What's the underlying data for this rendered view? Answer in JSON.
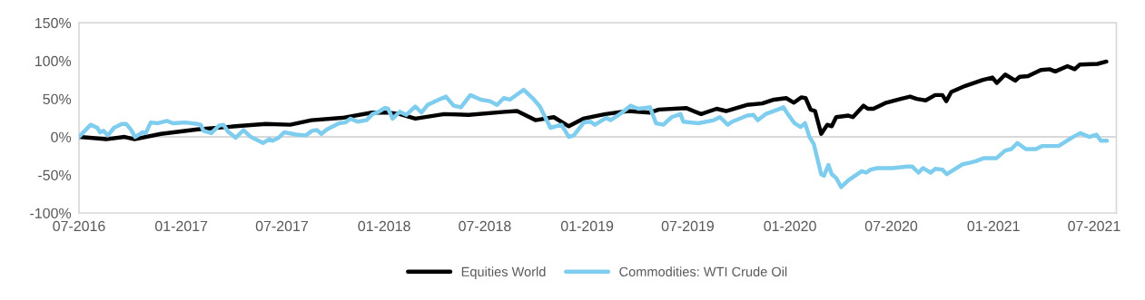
{
  "chart_data": {
    "type": "line",
    "xlim": [
      "2016-07-01",
      "2021-08-10"
    ],
    "xticks": [
      {
        "value": "2016-07-01",
        "label": "07-2016"
      },
      {
        "value": "2017-01-01",
        "label": "01-2017"
      },
      {
        "value": "2017-07-01",
        "label": "07-2017"
      },
      {
        "value": "2018-01-01",
        "label": "01-2018"
      },
      {
        "value": "2018-07-01",
        "label": "07-2018"
      },
      {
        "value": "2019-01-01",
        "label": "01-2019"
      },
      {
        "value": "2019-07-01",
        "label": "07-2019"
      },
      {
        "value": "2020-01-01",
        "label": "01-2020"
      },
      {
        "value": "2020-07-01",
        "label": "07-2020"
      },
      {
        "value": "2021-01-01",
        "label": "01-2021"
      },
      {
        "value": "2021-07-01",
        "label": "07-2021"
      }
    ],
    "ylim": [
      -100,
      150
    ],
    "yticks": [
      {
        "value": -100,
        "label": "-100%"
      },
      {
        "value": -50,
        "label": "-50%"
      },
      {
        "value": 0,
        "label": "0%"
      },
      {
        "value": 50,
        "label": "50%"
      },
      {
        "value": 100,
        "label": "100%"
      },
      {
        "value": 150,
        "label": "150%"
      }
    ],
    "grid": false,
    "legend": "bottom",
    "line_style": "solid",
    "marker": "none",
    "ref_lines": [
      {
        "axis": "y",
        "value": 0,
        "color": "#d9d9d9"
      }
    ],
    "series": [
      {
        "name": "Equities World",
        "color": "#000000",
        "x": [
          "2016-07-01",
          "2016-08-19",
          "2016-09-21",
          "2016-10-09",
          "2016-11-25",
          "2017-01-30",
          "2017-04-09",
          "2017-06-02",
          "2017-07-16",
          "2017-08-23",
          "2017-10-17",
          "2017-12-10",
          "2018-01-08",
          "2018-01-29",
          "2018-02-26",
          "2018-04-19",
          "2018-06-02",
          "2018-08-06",
          "2018-08-28",
          "2018-09-30",
          "2018-11-02",
          "2018-11-29",
          "2018-12-25",
          "2019-02-03",
          "2019-03-16",
          "2019-04-24",
          "2019-05-10",
          "2019-06-28",
          "2019-07-25",
          "2019-08-22",
          "2019-09-08",
          "2019-10-15",
          "2019-11-12",
          "2019-12-03",
          "2019-12-25",
          "2020-01-08",
          "2020-01-21",
          "2020-01-29",
          "2020-02-07",
          "2020-02-15",
          "2020-02-26",
          "2020-03-08",
          "2020-03-16",
          "2020-03-24",
          "2020-04-15",
          "2020-04-23",
          "2020-05-12",
          "2020-05-20",
          "2020-05-30",
          "2020-06-22",
          "2020-07-18",
          "2020-08-04",
          "2020-08-16",
          "2020-09-01",
          "2020-09-18",
          "2020-10-01",
          "2020-10-08",
          "2020-10-17",
          "2020-11-11",
          "2020-12-13",
          "2020-12-30",
          "2021-01-07",
          "2021-01-22",
          "2021-02-09",
          "2021-02-17",
          "2021-03-04",
          "2021-03-27",
          "2021-04-12",
          "2021-04-22",
          "2021-05-14",
          "2021-05-27",
          "2021-06-05",
          "2021-07-07",
          "2021-07-23"
        ],
        "values": [
          0,
          -3,
          0,
          -3,
          4,
          10,
          14,
          17,
          16,
          22,
          25,
          32,
          32,
          30,
          24,
          30,
          29,
          33,
          34,
          22,
          26,
          14,
          24,
          30,
          34,
          32,
          36,
          38,
          30,
          37,
          34,
          42,
          44,
          49,
          51,
          45,
          52,
          51,
          36,
          34,
          4,
          16,
          14,
          26,
          28,
          26,
          41,
          37,
          37,
          45,
          50,
          53,
          50,
          48,
          55,
          55,
          47,
          59,
          67,
          75,
          78,
          71,
          82,
          74,
          79,
          80,
          88,
          89,
          86,
          93,
          89,
          95,
          96,
          99
        ]
      },
      {
        "name": "Commodities: WTI Crude Oil",
        "color": "#7fcdee",
        "x": [
          "2016-07-01",
          "2016-07-22",
          "2016-08-03",
          "2016-08-08",
          "2016-08-14",
          "2016-08-22",
          "2016-09-02",
          "2016-09-16",
          "2016-09-24",
          "2016-10-02",
          "2016-10-10",
          "2016-10-23",
          "2016-10-29",
          "2016-11-07",
          "2016-11-20",
          "2016-12-06",
          "2016-12-17",
          "2017-01-08",
          "2017-01-30",
          "2017-02-05",
          "2017-02-10",
          "2017-02-24",
          "2017-03-10",
          "2017-03-18",
          "2017-03-26",
          "2017-04-09",
          "2017-04-23",
          "2017-05-06",
          "2017-05-28",
          "2017-06-08",
          "2017-06-14",
          "2017-06-25",
          "2017-07-05",
          "2017-07-27",
          "2017-08-13",
          "2017-08-24",
          "2017-09-02",
          "2017-09-10",
          "2017-09-20",
          "2017-10-12",
          "2017-10-23",
          "2017-11-01",
          "2017-11-14",
          "2017-11-30",
          "2017-12-11",
          "2017-12-22",
          "2018-01-02",
          "2018-01-08",
          "2018-01-16",
          "2018-01-29",
          "2018-02-10",
          "2018-02-26",
          "2018-03-09",
          "2018-03-20",
          "2018-04-09",
          "2018-04-22",
          "2018-05-06",
          "2018-05-19",
          "2018-06-05",
          "2018-06-24",
          "2018-07-10",
          "2018-07-23",
          "2018-08-04",
          "2018-08-15",
          "2018-09-09",
          "2018-09-25",
          "2018-10-08",
          "2018-10-27",
          "2018-11-16",
          "2018-11-29",
          "2018-12-08",
          "2018-12-26",
          "2019-01-07",
          "2019-01-15",
          "2019-02-04",
          "2019-02-12",
          "2019-03-01",
          "2019-03-20",
          "2019-04-03",
          "2019-04-24",
          "2019-05-05",
          "2019-05-18",
          "2019-06-02",
          "2019-06-18",
          "2019-06-23",
          "2019-07-20",
          "2019-08-17",
          "2019-08-28",
          "2019-09-11",
          "2019-09-19",
          "2019-10-16",
          "2019-10-27",
          "2019-11-04",
          "2019-11-18",
          "2019-12-10",
          "2019-12-20",
          "2019-12-28",
          "2020-01-09",
          "2020-01-20",
          "2020-01-28",
          "2020-02-05",
          "2020-02-13",
          "2020-02-26",
          "2020-03-02",
          "2020-03-10",
          "2020-03-16",
          "2020-03-24",
          "2020-04-02",
          "2020-04-15",
          "2020-05-09",
          "2020-05-17",
          "2020-05-25",
          "2020-06-06",
          "2020-07-03",
          "2020-07-30",
          "2020-08-08",
          "2020-08-19",
          "2020-08-27",
          "2020-09-10",
          "2020-09-18",
          "2020-10-01",
          "2020-10-09",
          "2020-11-06",
          "2020-11-19",
          "2020-11-30",
          "2020-12-14",
          "2021-01-06",
          "2021-01-22",
          "2021-02-02",
          "2021-02-13",
          "2021-02-28",
          "2021-03-18",
          "2021-03-29",
          "2021-04-28",
          "2021-05-22",
          "2021-06-06",
          "2021-06-22",
          "2021-07-05",
          "2021-07-13",
          "2021-07-24"
        ],
        "values": [
          0,
          16,
          12,
          6,
          8,
          2,
          12,
          17,
          17,
          10,
          0,
          6,
          5,
          19,
          18,
          21,
          18,
          19,
          17,
          16,
          8,
          5,
          15,
          16,
          7,
          -1,
          9,
          0,
          -8,
          -3,
          -5,
          -1,
          6,
          3,
          2,
          8,
          9,
          4,
          10,
          18,
          19,
          24,
          20,
          22,
          30,
          33,
          38,
          37,
          24,
          33,
          29,
          40,
          32,
          42,
          49,
          53,
          41,
          39,
          55,
          49,
          47,
          42,
          51,
          49,
          62,
          51,
          40,
          12,
          16,
          0,
          2,
          19,
          20,
          16,
          25,
          22,
          30,
          41,
          37,
          39,
          18,
          16,
          26,
          30,
          20,
          18,
          22,
          26,
          16,
          20,
          28,
          29,
          22,
          30,
          36,
          39,
          30,
          18,
          13,
          18,
          0,
          -10,
          -49,
          -51,
          -37,
          -49,
          -54,
          -66,
          -57,
          -45,
          -47,
          -43,
          -41,
          -41,
          -39,
          -39,
          -47,
          -41,
          -47,
          -42,
          -43,
          -49,
          -36,
          -34,
          -32,
          -28,
          -28,
          -18,
          -16,
          -8,
          -16,
          -16,
          -12,
          -12,
          -1,
          5,
          0,
          3,
          -5,
          -5
        ]
      }
    ]
  }
}
